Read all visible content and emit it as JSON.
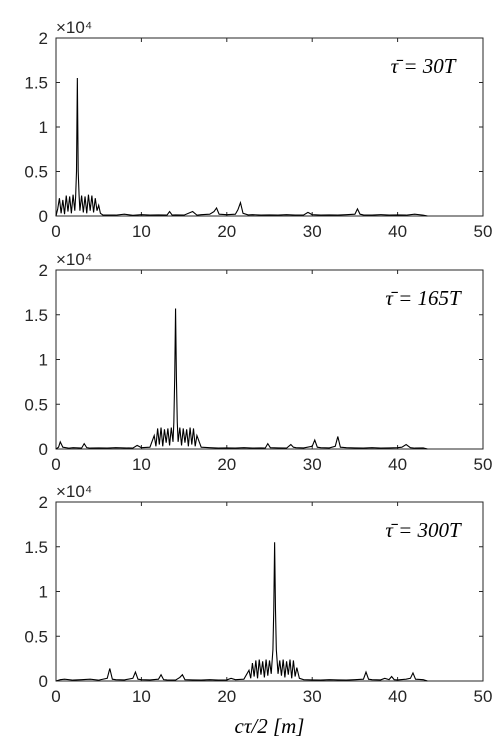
{
  "chart_data": [
    {
      "type": "line",
      "annotation": "τ̄ = 30T",
      "y_scale_label": "×10⁴",
      "xlim": [
        0,
        50
      ],
      "ylim": [
        0,
        20000
      ],
      "xticks": [
        0,
        10,
        20,
        30,
        40,
        50
      ],
      "yticks": [
        0,
        5000,
        10000,
        15000,
        20000
      ],
      "ytick_labels": [
        "0",
        "0.5",
        "1",
        "1.5",
        "2"
      ],
      "xlabel": "",
      "peak": {
        "x": 2.5,
        "y": 15500
      },
      "series": [
        {
          "x": [
            0,
            0.2,
            0.4,
            0.6,
            0.8,
            1.0,
            1.2,
            1.4,
            1.6,
            1.8,
            2.0,
            2.2,
            2.3,
            2.4,
            2.5,
            2.6,
            2.7,
            2.8,
            3.0,
            3.2,
            3.4,
            3.6,
            3.8,
            4.0,
            4.2,
            4.4,
            4.6,
            4.8,
            5.0,
            5.2,
            5.5,
            6,
            7,
            8,
            9,
            10,
            11,
            12,
            13,
            13.3,
            13.6,
            14,
            15,
            16,
            16.5,
            17,
            18,
            18.5,
            18.8,
            19.1,
            20,
            21,
            21.3,
            21.6,
            21.9,
            22.5,
            23,
            24,
            25,
            26,
            27,
            28,
            29,
            29.5,
            30,
            31,
            32,
            33,
            34,
            35,
            35.3,
            35.6,
            36,
            37,
            38,
            39,
            40,
            41,
            42,
            43,
            43.5
          ],
          "y": [
            0,
            800,
            2000,
            300,
            1800,
            200,
            2300,
            500,
            2200,
            300,
            2400,
            600,
            2200,
            5000,
            15500,
            5000,
            2400,
            600,
            2300,
            400,
            2200,
            300,
            2400,
            600,
            2300,
            400,
            2000,
            600,
            1200,
            300,
            100,
            100,
            100,
            200,
            80,
            150,
            100,
            120,
            100,
            500,
            100,
            120,
            100,
            500,
            100,
            150,
            200,
            500,
            900,
            200,
            150,
            200,
            700,
            1500,
            300,
            120,
            150,
            100,
            120,
            100,
            150,
            100,
            120,
            400,
            150,
            100,
            120,
            100,
            150,
            200,
            800,
            200,
            120,
            100,
            150,
            100,
            120,
            100,
            200,
            100,
            0
          ]
        }
      ]
    },
    {
      "type": "line",
      "annotation": "τ̄ = 165T",
      "y_scale_label": "×10⁴",
      "xlim": [
        0,
        50
      ],
      "ylim": [
        0,
        20000
      ],
      "xticks": [
        0,
        10,
        20,
        30,
        40,
        50
      ],
      "yticks": [
        0,
        5000,
        10000,
        15000,
        20000
      ],
      "ytick_labels": [
        "0",
        "0.5",
        "1",
        "1.5",
        "2"
      ],
      "xlabel": "",
      "peak": {
        "x": 14,
        "y": 15700
      },
      "series": [
        {
          "x": [
            0,
            0.3,
            0.5,
            0.8,
            1.5,
            2,
            3,
            3.3,
            3.6,
            4,
            5,
            6,
            7,
            8,
            9,
            9.5,
            10,
            11,
            11.5,
            11.7,
            11.9,
            12.1,
            12.3,
            12.5,
            12.7,
            12.9,
            13.1,
            13.3,
            13.5,
            13.7,
            13.8,
            13.9,
            14.0,
            14.1,
            14.2,
            14.3,
            14.5,
            14.7,
            14.9,
            15.1,
            15.3,
            15.5,
            15.7,
            15.9,
            16.1,
            16.3,
            16.5,
            17,
            18,
            19,
            20,
            21,
            22,
            23,
            24,
            24.5,
            24.8,
            25.1,
            26,
            27,
            27.5,
            27.8,
            28.1,
            29,
            30,
            30.3,
            30.6,
            31,
            32,
            32.7,
            33,
            33.3,
            34,
            35,
            36,
            37,
            38,
            39,
            40,
            40.5,
            41,
            41.5,
            42,
            43,
            43.5
          ],
          "y": [
            0,
            200,
            800,
            200,
            100,
            150,
            100,
            600,
            150,
            100,
            120,
            100,
            150,
            120,
            100,
            400,
            150,
            200,
            1500,
            300,
            2300,
            500,
            2400,
            300,
            2200,
            700,
            2300,
            400,
            2400,
            800,
            3000,
            8000,
            15700,
            8000,
            3000,
            800,
            2400,
            400,
            2300,
            700,
            2200,
            300,
            2400,
            500,
            2300,
            300,
            1500,
            200,
            150,
            100,
            120,
            100,
            150,
            100,
            120,
            100,
            600,
            150,
            120,
            100,
            500,
            200,
            150,
            120,
            300,
            1000,
            200,
            150,
            120,
            300,
            1400,
            200,
            150,
            120,
            100,
            150,
            100,
            120,
            150,
            200,
            500,
            150,
            100,
            120,
            0
          ]
        }
      ]
    },
    {
      "type": "line",
      "annotation": "τ̄ = 300T",
      "y_scale_label": "×10⁴",
      "xlim": [
        0,
        50
      ],
      "ylim": [
        0,
        20000
      ],
      "xticks": [
        0,
        10,
        20,
        30,
        40,
        50
      ],
      "yticks": [
        0,
        5000,
        10000,
        15000,
        20000
      ],
      "ytick_labels": [
        "0",
        "0.5",
        "1",
        "1.5",
        "2"
      ],
      "xlabel": "cτ/2 [m]",
      "peak": {
        "x": 25.6,
        "y": 15500
      },
      "series": [
        {
          "x": [
            0,
            0.5,
            1,
            2,
            3,
            4,
            5,
            6,
            6.3,
            6.6,
            7,
            8,
            9,
            9.3,
            9.6,
            10,
            11,
            12,
            12.3,
            12.6,
            13,
            14,
            14.5,
            14.8,
            15.1,
            16,
            17,
            18,
            19,
            20,
            20.5,
            21,
            22,
            22.6,
            22.8,
            23.0,
            23.2,
            23.4,
            23.6,
            23.8,
            24.0,
            24.2,
            24.4,
            24.6,
            24.8,
            25.0,
            25.2,
            25.4,
            25.5,
            25.6,
            25.7,
            25.8,
            26.0,
            26.2,
            26.4,
            26.6,
            26.8,
            27.0,
            27.2,
            27.4,
            27.6,
            27.8,
            28.0,
            28.2,
            28.5,
            29,
            30,
            31,
            32,
            33,
            34,
            35,
            36,
            36.3,
            36.6,
            37,
            38,
            38.5,
            39,
            39.3,
            39.6,
            40,
            41,
            41.5,
            41.8,
            42.1,
            43,
            43.5
          ],
          "y": [
            0,
            150,
            200,
            100,
            150,
            200,
            100,
            300,
            1400,
            200,
            150,
            120,
            300,
            1000,
            200,
            150,
            120,
            200,
            700,
            150,
            120,
            100,
            400,
            700,
            150,
            120,
            100,
            150,
            100,
            120,
            300,
            150,
            200,
            1200,
            300,
            2000,
            500,
            2300,
            300,
            2400,
            700,
            2200,
            400,
            2400,
            600,
            2300,
            800,
            3500,
            8000,
            15500,
            8000,
            3500,
            800,
            2300,
            600,
            2400,
            400,
            2200,
            700,
            2400,
            300,
            2300,
            500,
            1500,
            300,
            150,
            120,
            100,
            150,
            120,
            100,
            150,
            200,
            1000,
            200,
            150,
            120,
            300,
            150,
            500,
            150,
            120,
            200,
            300,
            900,
            200,
            150,
            0
          ]
        }
      ]
    }
  ]
}
